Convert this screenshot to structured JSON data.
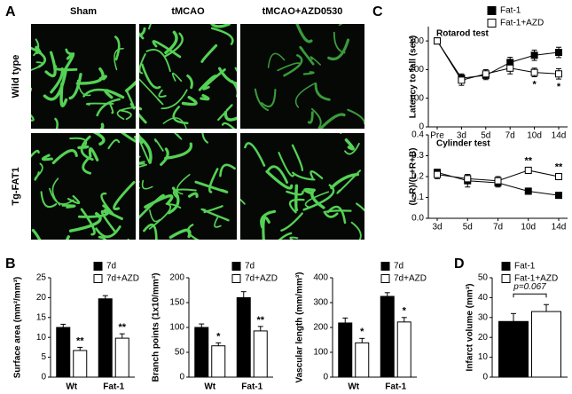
{
  "panels": [
    "A",
    "B",
    "C",
    "D"
  ],
  "images": {
    "columns": [
      "Sham",
      "tMCAO",
      "tMCAO+AZD0530"
    ],
    "rows": [
      "Wild type",
      "Tg-FAT1"
    ]
  },
  "chart_data": [
    {
      "type": "line",
      "title": "Rotarod test",
      "ylabel": "Latency to fall (sec)",
      "categories": [
        "Pre",
        "3d",
        "5d",
        "7d",
        "10d",
        "14d"
      ],
      "ylim": [
        0,
        350
      ],
      "yticks": [
        0,
        100,
        200,
        300
      ],
      "series": [
        {
          "name": "Fat-1",
          "color": "#000000",
          "values": [
            300,
            170,
            180,
            225,
            250,
            260
          ],
          "errors": [
            0,
            15,
            15,
            18,
            18,
            18
          ]
        },
        {
          "name": "Fat-1+AZD",
          "color": "#ffffff",
          "values": [
            300,
            163,
            185,
            205,
            190,
            185
          ],
          "errors": [
            0,
            18,
            15,
            20,
            15,
            18
          ],
          "annotations": [
            null,
            null,
            null,
            null,
            "*",
            "*"
          ]
        }
      ]
    },
    {
      "type": "line",
      "title": "Cylinder test",
      "ylabel": "(L-R)/(L+R+B)",
      "categories": [
        "3d",
        "5d",
        "7d",
        "10d",
        "14d"
      ],
      "ylim": [
        0,
        0.4
      ],
      "yticks": [
        {
          "value": 0,
          "label": "0.0"
        },
        0.1,
        0.2,
        0.3,
        0.4
      ],
      "series": [
        {
          "name": "Fat-1",
          "color": "#000000",
          "values": [
            0.22,
            0.18,
            0.17,
            0.13,
            0.11
          ],
          "errors": [
            0.015,
            0.03,
            0.02,
            0.015,
            0.01
          ]
        },
        {
          "name": "Fat-1+AZD",
          "color": "#ffffff",
          "values": [
            0.21,
            0.19,
            0.18,
            0.23,
            0.2
          ],
          "errors": [
            0.02,
            0.02,
            0.02,
            0.015,
            0.015
          ],
          "annotations": [
            null,
            null,
            null,
            "**",
            "**"
          ]
        }
      ]
    },
    {
      "type": "bar",
      "ylabel": "Surface area (mm²/mm³)",
      "categories": [
        "Wt",
        "Fat-1"
      ],
      "ylim": [
        0,
        25
      ],
      "yticks": [
        0,
        5,
        10,
        15,
        20,
        25
      ],
      "series": [
        {
          "name": "7d",
          "color": "#000000",
          "values": [
            12.5,
            19.7
          ],
          "errors": [
            0.8,
            0.8
          ]
        },
        {
          "name": "7d+AZD",
          "color": "#ffffff",
          "values": [
            6.7,
            9.8
          ],
          "errors": [
            0.8,
            1.1
          ],
          "annotations": [
            "**",
            "**"
          ]
        }
      ]
    },
    {
      "type": "bar",
      "ylabel": "Branch points (1x10/mm³)",
      "categories": [
        "Wt",
        "Fat-1"
      ],
      "ylim": [
        0,
        200
      ],
      "yticks": [
        0,
        50,
        100,
        150,
        200
      ],
      "series": [
        {
          "name": "7d",
          "color": "#000000",
          "values": [
            100,
            160
          ],
          "errors": [
            7,
            12
          ]
        },
        {
          "name": "7d+AZD",
          "color": "#ffffff",
          "values": [
            63,
            93
          ],
          "errors": [
            6,
            9
          ],
          "annotations": [
            "*",
            "**"
          ]
        }
      ]
    },
    {
      "type": "bar",
      "ylabel": "Vascular length (mm/mm³)",
      "categories": [
        "Wt",
        "Fat-1"
      ],
      "ylim": [
        0,
        400
      ],
      "yticks": [
        0,
        100,
        200,
        300,
        400
      ],
      "series": [
        {
          "name": "7d",
          "color": "#000000",
          "values": [
            218,
            325
          ],
          "errors": [
            20,
            15
          ]
        },
        {
          "name": "7d+AZD",
          "color": "#ffffff",
          "values": [
            138,
            222
          ],
          "errors": [
            18,
            18
          ],
          "annotations": [
            "*",
            "*"
          ]
        }
      ]
    },
    {
      "type": "bar",
      "ylabel": "Infarct volume (mm³)",
      "categories": [
        null
      ],
      "ylim": [
        0,
        50
      ],
      "yticks": [
        0,
        10,
        20,
        30,
        40,
        50
      ],
      "annotation": "p=0.067",
      "series": [
        {
          "name": "Fat-1",
          "color": "#000000",
          "values": [
            28
          ],
          "errors": [
            4
          ]
        },
        {
          "name": "Fat-1+AZD",
          "color": "#ffffff",
          "values": [
            33
          ],
          "errors": [
            3.5
          ]
        }
      ]
    }
  ]
}
